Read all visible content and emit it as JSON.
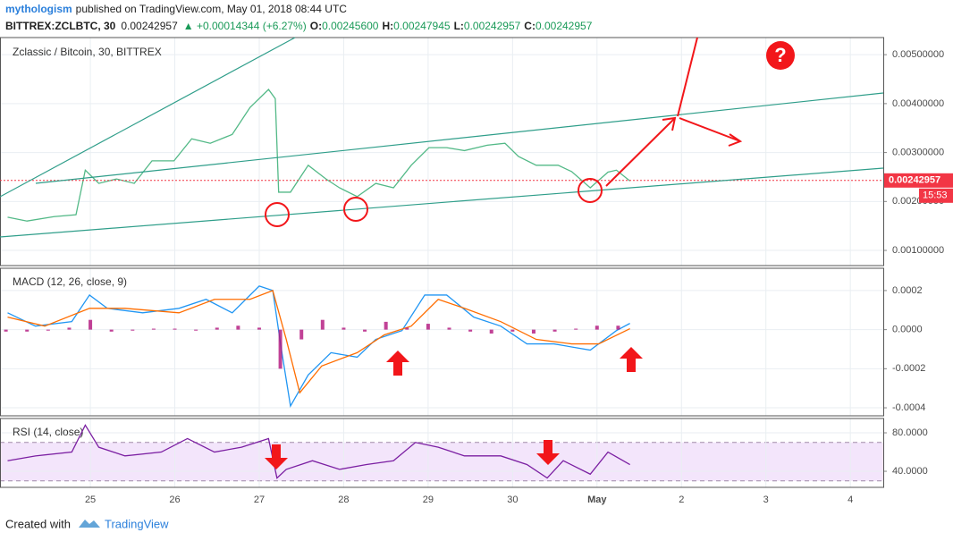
{
  "header": {
    "author": "mythologism",
    "published": "published on TradingView.com, May 01, 2018 08:44 UTC",
    "symbol": "BITTREX:ZCLBTC, 30",
    "price": "0.00242957",
    "change": "▲ +0.00014344 (+6.27%)",
    "o_label": "O:",
    "o": "0.00245600",
    "h_label": "H:",
    "h": "0.00247945",
    "l_label": "L:",
    "l": "0.00242957",
    "c_label": "C:",
    "c": "0.00242957"
  },
  "annotations": {
    "question": "?"
  },
  "footer": {
    "created": "Created with",
    "brand": "TradingView"
  },
  "chart_data": [
    {
      "type": "line",
      "title": "Zclassic / Bitcoin, 30, BITTREX",
      "xlim": [
        23.93,
        34.39
      ],
      "ylim": [
        0.00069,
        0.00535
      ],
      "yticks": [
        {
          "value": 0.001,
          "label": "0.00100000"
        },
        {
          "value": 0.002,
          "label": "0.00200000"
        },
        {
          "value": 0.003,
          "label": "0.00300000"
        },
        {
          "value": 0.004,
          "label": "0.00400000"
        },
        {
          "value": 0.005,
          "label": "0.00500000"
        }
      ],
      "series": [
        {
          "name": "ZCLBTC",
          "color": "#53b987",
          "x": [
            24.02,
            24.25,
            24.57,
            24.83,
            24.94,
            25.1,
            25.31,
            25.52,
            25.73,
            25.99,
            26.2,
            26.42,
            26.68,
            26.89,
            27.11,
            27.19,
            27.23,
            27.37,
            27.58,
            27.79,
            27.95,
            28.16,
            28.38,
            28.59,
            28.8,
            29.01,
            29.22,
            29.43,
            29.7,
            29.91,
            30.07,
            30.28,
            30.54,
            30.7,
            30.92,
            31.13,
            31.23,
            31.39
          ],
          "values": [
            0.00168,
            0.0016,
            0.00169,
            0.00173,
            0.00264,
            0.00237,
            0.00246,
            0.00237,
            0.00283,
            0.00283,
            0.00328,
            0.00319,
            0.00337,
            0.00392,
            0.00429,
            0.0041,
            0.00219,
            0.00219,
            0.00274,
            0.00246,
            0.00228,
            0.0021,
            0.00237,
            0.00228,
            0.00274,
            0.0031,
            0.0031,
            0.00304,
            0.00315,
            0.00319,
            0.00292,
            0.00274,
            0.00274,
            0.00261,
            0.00228,
            0.0026,
            0.00264,
            0.00242
          ]
        }
      ],
      "last_price": {
        "value": 0.00242957,
        "label": "0.00242957",
        "color": "#f23645"
      },
      "countdown": "15:53"
    },
    {
      "type": "macd",
      "title": "MACD (12, 26, close, 9)",
      "xlim": [
        23.93,
        34.39
      ],
      "ylim": [
        -0.000441,
        0.000314
      ],
      "yticks": [
        -0.0004,
        -0.0002,
        {
          "value": 0,
          "label": "0.0000"
        },
        0.0002
      ],
      "series": [
        {
          "name": "MACD",
          "color": "#2196f3",
          "x": [
            24.02,
            24.35,
            24.78,
            24.99,
            25.2,
            25.62,
            26.05,
            26.37,
            26.68,
            27.0,
            27.16,
            27.26,
            27.37,
            27.58,
            27.85,
            28.16,
            28.38,
            28.69,
            28.96,
            29.22,
            29.54,
            29.86,
            30.17,
            30.49,
            30.92,
            31.23,
            31.39
          ],
          "values": [
            8.6e-05,
            1.8e-05,
            4.1e-05,
            0.000177,
            0.000109,
            8.6e-05,
            0.000109,
            0.000155,
            8.6e-05,
            0.000223,
            0.0002,
            -9.5e-05,
            -0.000391,
            -0.000232,
            -0.000118,
            -0.000141,
            -5e-05,
            -5e-06,
            0.000177,
            0.000177,
            6.4e-05,
            1.8e-05,
            -7.3e-05,
            -7.3e-05,
            -0.000105,
            -5e-06,
            3.2e-05
          ]
        },
        {
          "name": "Signal",
          "color": "#ff6d00",
          "x": [
            24.02,
            24.46,
            24.99,
            25.41,
            26.05,
            26.47,
            26.89,
            27.16,
            27.32,
            27.48,
            27.74,
            28.16,
            28.48,
            28.8,
            29.12,
            29.43,
            29.86,
            30.28,
            30.7,
            31.02,
            31.39
          ],
          "values": [
            6.4e-05,
            1.8e-05,
            0.000109,
            0.000109,
            8.6e-05,
            0.000155,
            0.000155,
            0.0002,
            -5e-05,
            -0.000323,
            -0.000186,
            -0.000118,
            -2.7e-05,
            1.8e-05,
            0.000155,
            0.000109,
            4.1e-05,
            -5e-05,
            -7.3e-05,
            -7.3e-05,
            5e-06
          ]
        },
        {
          "name": "Histogram",
          "color": "#b2137c",
          "x": [
            24.0,
            24.25,
            24.5,
            24.75,
            25.0,
            25.25,
            25.5,
            25.75,
            26.0,
            26.25,
            26.5,
            26.75,
            27.0,
            27.25,
            27.5,
            27.75,
            28.0,
            28.25,
            28.5,
            28.75,
            29.0,
            29.25,
            29.5,
            29.75,
            30.0,
            30.25,
            30.5,
            30.75,
            31.0,
            31.25
          ],
          "values": [
            -1e-05,
            -1e-05,
            -5e-06,
            1e-05,
            5e-05,
            -1e-05,
            -5e-06,
            5e-06,
            5e-06,
            -5e-06,
            1e-05,
            2e-05,
            1e-05,
            -0.0002,
            -5e-05,
            5e-05,
            1e-05,
            -1e-05,
            4e-05,
            1e-05,
            3e-05,
            1e-05,
            -1e-05,
            -2e-05,
            -1e-05,
            -2e-05,
            -1e-05,
            5e-06,
            2e-05,
            2e-05
          ]
        }
      ]
    },
    {
      "type": "rsi",
      "title": "RSI (14, close)",
      "xlim": [
        23.93,
        34.39
      ],
      "ylim": [
        23.3,
        94.9
      ],
      "yticks": [
        {
          "value": 40,
          "label": "40.0000"
        },
        {
          "value": 80,
          "label": "80.0000"
        }
      ],
      "band": [
        30,
        70
      ],
      "xticks": [
        25,
        26,
        27,
        28,
        29,
        30,
        {
          "value": 31,
          "label": "May"
        },
        {
          "value": 32,
          "label": "2"
        },
        {
          "value": 33,
          "label": "3"
        },
        {
          "value": 34,
          "label": "4"
        }
      ],
      "series": [
        {
          "name": "RSI",
          "color": "#7b1fa2",
          "x": [
            24.02,
            24.35,
            24.78,
            24.94,
            25.1,
            25.41,
            25.84,
            26.15,
            26.47,
            26.79,
            27.11,
            27.21,
            27.32,
            27.63,
            27.95,
            28.27,
            28.59,
            28.85,
            29.12,
            29.43,
            29.86,
            30.17,
            30.41,
            30.6,
            30.92,
            31.13,
            31.39
          ],
          "values": [
            51,
            56,
            60,
            88,
            65,
            56,
            60,
            74,
            60,
            65,
            74,
            33,
            42,
            51,
            42,
            47,
            51,
            70,
            65,
            56,
            56,
            47,
            33,
            51,
            37,
            60,
            47
          ]
        }
      ]
    }
  ]
}
